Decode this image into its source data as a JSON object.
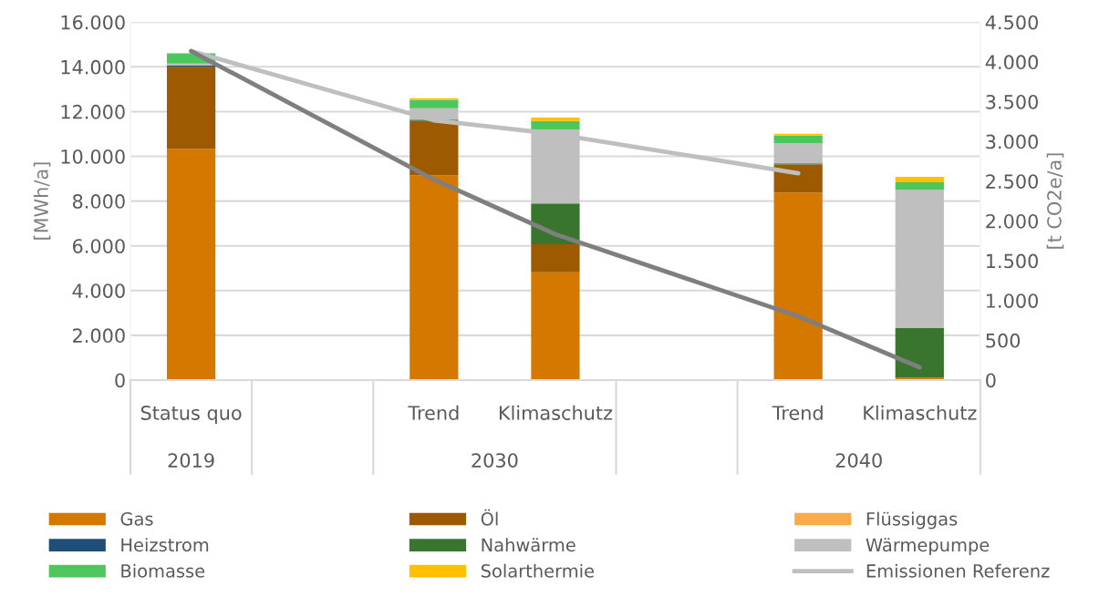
{
  "chart_data": {
    "type": "bar",
    "stacked": true,
    "ylabel": "[MWh/a]",
    "y2label": "[t CO2e/a]",
    "categories": [
      "Status quo",
      null,
      "Trend",
      "Klimaschutz",
      null,
      "Trend",
      "Klimaschutz"
    ],
    "annotations": [
      "2019",
      "2030",
      "2040"
    ],
    "ylim": [
      0,
      16000
    ],
    "yticks": [
      0,
      {
        "value": 2000,
        "label": "2.000"
      },
      {
        "value": 4000,
        "label": "4.000"
      },
      {
        "value": 6000,
        "label": "6.000"
      },
      {
        "value": 8000,
        "label": "8.000"
      },
      {
        "value": 10000,
        "label": "10.000"
      },
      {
        "value": 12000,
        "label": "12.000"
      },
      {
        "value": 14000,
        "label": "14.000"
      },
      {
        "value": 16000,
        "label": "16.000"
      }
    ],
    "y2lim": [
      0,
      4500
    ],
    "y2ticks": [
      0,
      500,
      {
        "value": 1000,
        "label": "1.000"
      },
      {
        "value": 1500,
        "label": "1.500"
      },
      {
        "value": 2000,
        "label": "2.000"
      },
      {
        "value": 2500,
        "label": "2.500"
      },
      {
        "value": 3000,
        "label": "3.000"
      },
      {
        "value": 3500,
        "label": "3.500"
      },
      {
        "value": 4000,
        "label": "4.000"
      },
      {
        "value": 4500,
        "label": "4.500"
      }
    ],
    "grid": "y",
    "legend": "bottom",
    "series": [
      {
        "name": "Gas",
        "color": "#d47800",
        "values": [
          10330,
          null,
          9140,
          4820,
          null,
          8380,
          110
        ]
      },
      {
        "name": "Öl",
        "color": "#9e5a00",
        "values": [
          3670,
          null,
          2440,
          1250,
          null,
          1250,
          0
        ]
      },
      {
        "name": "Flüssiggas",
        "color": "#fbab4a",
        "values": [
          0,
          null,
          0,
          0,
          null,
          0,
          0
        ]
      },
      {
        "name": "Heizstrom",
        "color": "#1f4e79",
        "values": [
          50,
          null,
          0,
          0,
          null,
          0,
          0
        ]
      },
      {
        "name": "Nahwärme",
        "color": "#3a7530",
        "values": [
          0,
          null,
          60,
          1820,
          null,
          50,
          2210
        ]
      },
      {
        "name": "Wärmepumpe",
        "color": "#bfbfbf",
        "values": [
          100,
          null,
          510,
          3310,
          null,
          900,
          6190
        ]
      },
      {
        "name": "Biomasse",
        "color": "#4dc65c",
        "values": [
          450,
          null,
          380,
          380,
          null,
          350,
          330
        ]
      },
      {
        "name": "Solarthermie",
        "color": "#ffc000",
        "values": [
          0,
          null,
          70,
          150,
          null,
          80,
          240
        ]
      },
      {
        "name": "Emissionen Referenz",
        "type": "line",
        "axis": "y2",
        "color": "#bfbfbf",
        "values": [
          4135,
          null,
          3265,
          3093,
          null,
          2600,
          null
        ]
      },
      {
        "type": "line",
        "axis": "y2",
        "color": "#7f7f7f",
        "values": [
          4135,
          null,
          2520,
          1833,
          null,
          802,
          160
        ]
      }
    ]
  }
}
